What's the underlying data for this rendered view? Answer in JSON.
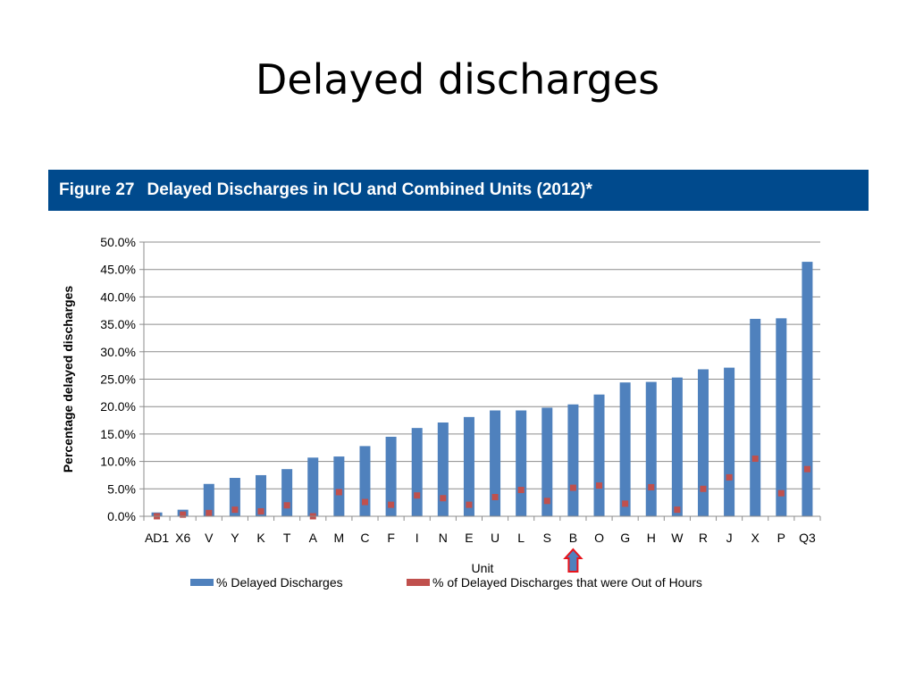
{
  "slide": {
    "title": "Delayed discharges"
  },
  "figure": {
    "number": "Figure 27",
    "title": "Delayed Discharges in ICU and Combined Units (2012)*"
  },
  "colors": {
    "banner": "#004a8d",
    "bar": "#4f81bd",
    "marker": "#c0504d"
  },
  "chart_data": {
    "type": "bar",
    "xlabel": "Unit",
    "ylabel": "Percentage delayed discharges",
    "ylim": [
      0,
      50
    ],
    "yticks": [
      "0.0%",
      "5.0%",
      "10.0%",
      "15.0%",
      "20.0%",
      "25.0%",
      "30.0%",
      "35.0%",
      "40.0%",
      "45.0%",
      "50.0%"
    ],
    "grid": true,
    "legend_position": "bottom",
    "highlight": {
      "category": "B",
      "marker": "arrow-up"
    },
    "categories": [
      "AD1",
      "X6",
      "V",
      "Y",
      "K",
      "T",
      "A",
      "M",
      "C",
      "F",
      "I",
      "N",
      "E",
      "U",
      "L",
      "S",
      "B",
      "O",
      "G",
      "H",
      "W",
      "R",
      "J",
      "X",
      "P",
      "Q3"
    ],
    "series": [
      {
        "name": "% Delayed Discharges",
        "type": "bar",
        "values": [
          0.7,
          1.2,
          5.9,
          7.0,
          7.5,
          8.6,
          10.7,
          10.9,
          12.8,
          14.5,
          16.1,
          17.1,
          18.1,
          19.3,
          19.3,
          19.8,
          20.4,
          22.2,
          24.4,
          24.5,
          25.3,
          26.8,
          27.1,
          36.0,
          36.1,
          46.4
        ]
      },
      {
        "name": "% of Delayed Discharges that were Out of Hours",
        "type": "marker",
        "values": [
          0.0,
          0.3,
          0.6,
          1.2,
          0.9,
          2.0,
          0.0,
          4.4,
          2.6,
          2.1,
          3.8,
          3.3,
          2.1,
          3.5,
          4.8,
          2.8,
          5.2,
          5.6,
          2.3,
          5.3,
          1.2,
          5.0,
          7.1,
          10.5,
          4.2,
          8.6
        ]
      }
    ]
  }
}
